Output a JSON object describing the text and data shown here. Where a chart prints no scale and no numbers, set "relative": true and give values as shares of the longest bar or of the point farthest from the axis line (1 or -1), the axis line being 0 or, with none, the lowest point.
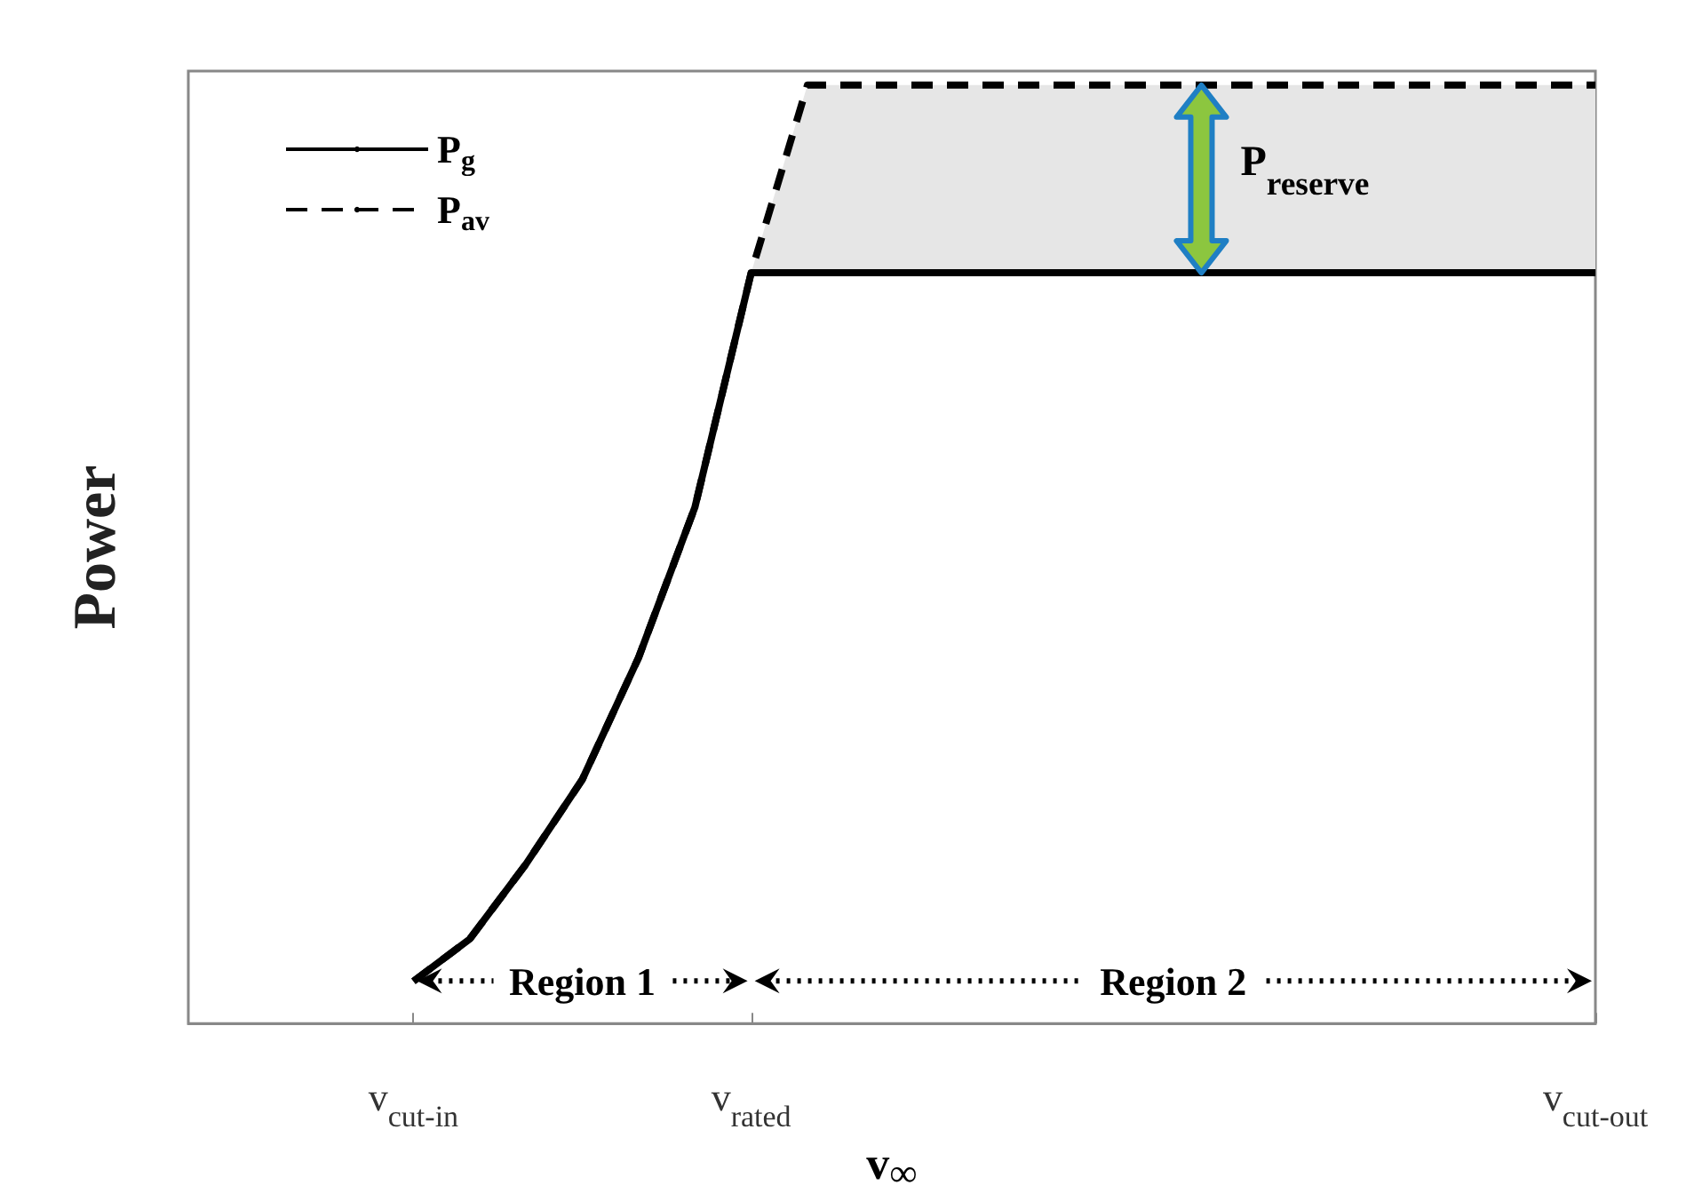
{
  "chart_data": {
    "type": "line",
    "relative": true,
    "xlabel": "v$_{∞}$",
    "ylabel": "Power",
    "legend": "top left",
    "marker": "none",
    "tick_labels": "x",
    "categories": [
      null,
      null,
      null,
      null,
      "v$_{cut-in}$",
      null,
      null,
      null,
      null,
      null,
      "v$_{rated}$",
      null,
      null,
      null,
      null,
      null,
      null,
      null,
      null,
      null,
      null,
      null,
      null,
      null,
      null,
      "v$_{cut-out}$"
    ],
    "series": [
      {
        "name": "P$_{g}$",
        "color": "#000000",
        "line_style": "solid",
        "values": [
          null,
          null,
          null,
          null,
          0.045,
          0.09,
          0.17,
          0.26,
          0.39,
          0.55,
          0.8,
          0.8,
          0.8,
          0.8,
          0.8,
          0.8,
          0.8,
          0.8,
          0.8,
          0.8,
          0.8,
          0.8,
          0.8,
          0.8,
          0.8,
          0.8
        ]
      },
      {
        "name": "P$_{av}$",
        "color": "#000000",
        "line_style": "dashed",
        "values": [
          null,
          null,
          null,
          null,
          0.045,
          0.09,
          0.17,
          0.26,
          0.39,
          0.55,
          0.8,
          1,
          1,
          1,
          1,
          1,
          1,
          1,
          1,
          1,
          1,
          1,
          1,
          1,
          1,
          1
        ],
        "lower": [
          null,
          null,
          null,
          null,
          null,
          null,
          null,
          null,
          null,
          null,
          0.8,
          0.8,
          0.8,
          0.8,
          0.8,
          0.8,
          0.8,
          0.8,
          0.8,
          0.8,
          0.8,
          0.8,
          0.8,
          0.8,
          0.8,
          0.8
        ],
        "upper": [
          null,
          null,
          null,
          null,
          null,
          null,
          null,
          null,
          null,
          null,
          0.8,
          1,
          1,
          1,
          1,
          1,
          1,
          1,
          1,
          1,
          1,
          1,
          1,
          1,
          1,
          1
        ]
      }
    ],
    "annotations": [
      "Region 1",
      "Region 2",
      "P$_{reserve}$"
    ]
  }
}
